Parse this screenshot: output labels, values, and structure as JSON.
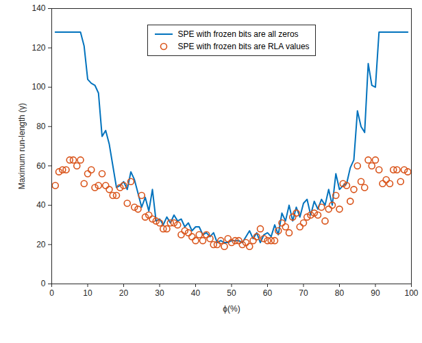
{
  "chart_data": {
    "type": "line",
    "x_label": "ϕ(%)",
    "y_label": "Maximum run-length (γ)",
    "x": [
      1,
      2,
      3,
      4,
      5,
      6,
      7,
      8,
      9,
      10,
      11,
      12,
      13,
      14,
      15,
      16,
      17,
      18,
      19,
      20,
      21,
      22,
      23,
      24,
      25,
      26,
      27,
      28,
      29,
      30,
      31,
      32,
      33,
      34,
      35,
      36,
      37,
      38,
      39,
      40,
      41,
      42,
      43,
      44,
      45,
      46,
      47,
      48,
      49,
      50,
      51,
      52,
      53,
      54,
      55,
      56,
      57,
      58,
      59,
      60,
      61,
      62,
      63,
      64,
      65,
      66,
      67,
      68,
      69,
      70,
      71,
      72,
      73,
      74,
      75,
      76,
      77,
      78,
      79,
      80,
      81,
      82,
      83,
      84,
      85,
      86,
      87,
      88,
      89,
      90,
      91,
      92,
      93,
      94,
      95,
      96,
      97,
      98,
      99
    ],
    "series": [
      {
        "name": "SPE with frozen bits are all zeros",
        "type": "line",
        "color": "#0072bd",
        "line_style": "solid",
        "values": [
          128,
          128,
          128,
          128,
          128,
          128,
          128,
          128,
          121,
          104,
          102,
          101,
          97,
          75,
          78,
          71,
          60,
          49,
          50,
          52,
          48,
          57,
          53,
          46,
          39,
          44,
          37,
          48,
          32,
          33,
          30,
          34,
          31,
          35,
          32,
          33,
          29,
          31,
          27,
          29,
          29,
          25,
          26,
          24,
          26,
          21,
          22,
          21,
          21,
          22,
          22,
          22,
          21,
          24,
          27,
          23,
          26,
          21,
          25,
          26,
          24,
          30,
          25,
          36,
          32,
          40,
          32,
          39,
          34,
          41,
          43,
          35,
          42,
          38,
          43,
          40,
          48,
          40,
          56,
          48,
          50,
          51,
          59,
          63,
          88,
          80,
          77,
          112,
          101,
          100,
          128,
          128,
          128,
          128,
          128,
          128,
          128,
          128,
          128
        ]
      },
      {
        "name": "SPE with frozen bits are RLA values",
        "type": "scatter",
        "color": "#d95319",
        "marker": "circle",
        "values": [
          50,
          57,
          58,
          58,
          63,
          63,
          60,
          63,
          51,
          56,
          58,
          49,
          50,
          56,
          50,
          48,
          45,
          45,
          49,
          50,
          41,
          52,
          39,
          38,
          45,
          34,
          35,
          33,
          32,
          31,
          28,
          28,
          31,
          31,
          30,
          25,
          27,
          26,
          24,
          22,
          25,
          22,
          25,
          23,
          20,
          20,
          22,
          19,
          23,
          21,
          22,
          22,
          20,
          21,
          19,
          22,
          24,
          28,
          23,
          22,
          22,
          22,
          27,
          31,
          29,
          26,
          34,
          36,
          29,
          31,
          34,
          35,
          36,
          35,
          39,
          32,
          38,
          40,
          45,
          38,
          51,
          50,
          42,
          48,
          60,
          52,
          49,
          63,
          60,
          63,
          58,
          51,
          53,
          51,
          58,
          58,
          52,
          58,
          57
        ]
      }
    ],
    "xlim": [
      0,
      100
    ],
    "xticks": [
      0,
      10,
      20,
      30,
      40,
      50,
      60,
      70,
      80,
      90,
      100
    ],
    "ylim": [
      0,
      140
    ],
    "yticks": [
      0,
      20,
      40,
      60,
      80,
      100,
      120,
      140
    ],
    "grid": false,
    "legend": "top"
  }
}
